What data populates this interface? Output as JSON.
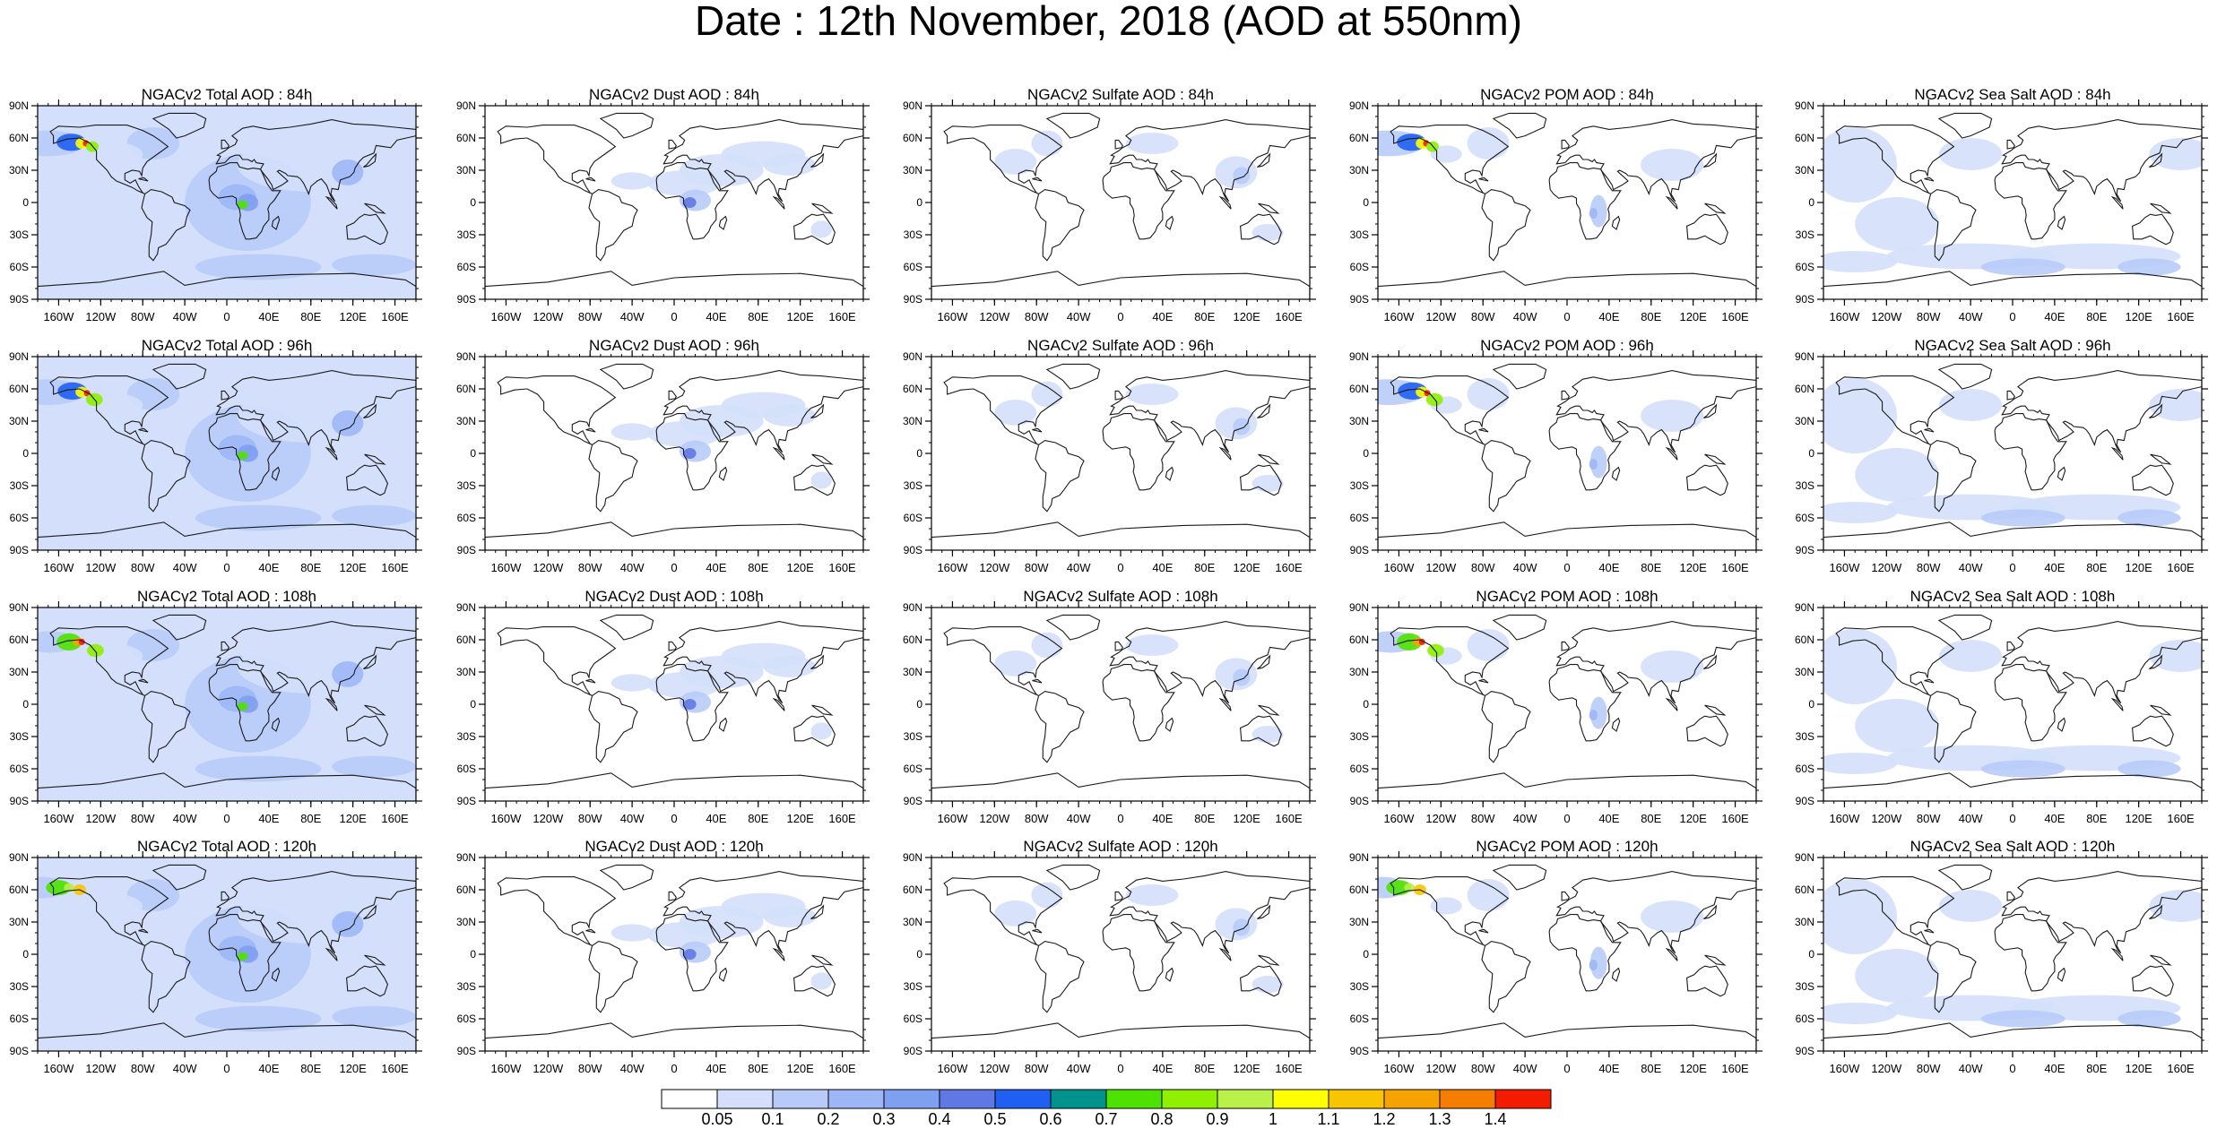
{
  "title": "Date : 12th November, 2018 (AOD at 550nm)",
  "lat_labels": [
    "90N",
    "60N",
    "30N",
    "0",
    "30S",
    "60S",
    "90S"
  ],
  "lon_labels": [
    "160W",
    "120W",
    "80W",
    "40W",
    "0",
    "40E",
    "80E",
    "120E",
    "160E"
  ],
  "lat_values": [
    90,
    60,
    30,
    0,
    -30,
    -60,
    -90
  ],
  "lon_values": [
    -160,
    -120,
    -80,
    -40,
    0,
    40,
    80,
    120,
    160
  ],
  "panel_titles": [
    [
      "NGACv2 Total AOD : 84h",
      "NGACv2 Dust AOD : 84h",
      "NGACv2 Sulfate AOD : 84h",
      "NGACv2 POM AOD : 84h",
      "NGACv2 Sea Salt AOD : 84h"
    ],
    [
      "NGACv2 Total AOD : 96h",
      "NGACv2 Dust AOD : 96h",
      "NGACv2 Sulfate AOD : 96h",
      "NGACv2 POM AOD : 96h",
      "NGACv2 Sea Salt AOD : 96h"
    ],
    [
      "NGACv2 Total AOD : 108h",
      "NGACv2 Dust AOD : 108h",
      "NGACv2 Sulfate AOD : 108h",
      "NGACv2 POM AOD : 108h",
      "NGACv2 Sea Salt AOD : 108h"
    ],
    [
      "NGACv2 Total AOD : 120h",
      "NGACv2 Dust AOD : 120h",
      "NGACv2 Sulfate AOD : 120h",
      "NGACv2 POM AOD : 120h",
      "NGACv2 Sea Salt  AOD : 120h"
    ]
  ],
  "colorbar": {
    "labels": [
      "0.05",
      "0.1",
      "0.2",
      "0.3",
      "0.4",
      "0.5",
      "0.6",
      "0.7",
      "0.8",
      "0.9",
      "1",
      "1.1",
      "1.2",
      "1.3",
      "1.4"
    ],
    "colors": [
      "#ffffff",
      "#d4e0fb",
      "#b8cbf8",
      "#9db7f6",
      "#7f9ff0",
      "#5f78e4",
      "#1f5ff2",
      "#00928c",
      "#4ee200",
      "#8ff000",
      "#b9f04a",
      "#ffff00",
      "#f8c500",
      "#f6a200",
      "#f57e00",
      "#f41c00"
    ]
  }
}
